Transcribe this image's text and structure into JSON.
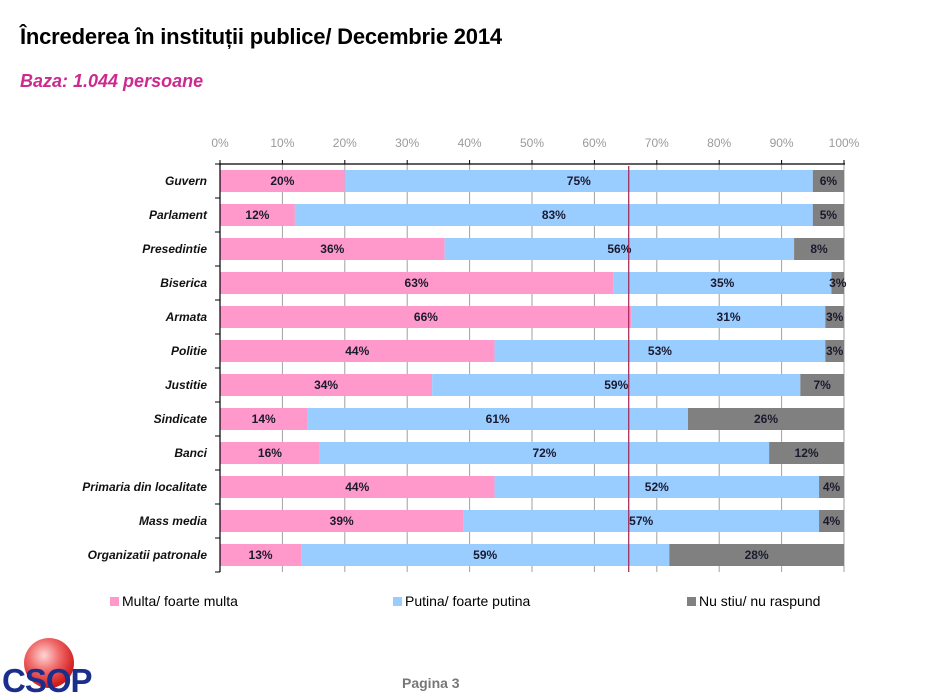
{
  "header": {
    "title": "Încrederea în instituții publice/ Decembrie 2014",
    "subtitle": "Baza: 1.044 persoane"
  },
  "colors": {
    "multa": "#ff99cc",
    "putina": "#99ccff",
    "nu_stiu": "#808080",
    "reference_line": "#a3224f",
    "subtitle": "#cc2a8e",
    "logo_text": "#1a2e8c"
  },
  "chart_data": {
    "type": "bar",
    "orientation": "horizontal",
    "stacked": "100%",
    "title": "Încrederea în instituții publice/ Decembrie 2014",
    "subtitle": "Baza: 1.044 persoane",
    "xlabel": "",
    "ylabel": "",
    "xlim": [
      0,
      100
    ],
    "x_tick_labels": [
      "0%",
      "10%",
      "20%",
      "30%",
      "40%",
      "50%",
      "60%",
      "70%",
      "80%",
      "90%",
      "100%"
    ],
    "x_axis_position": "top",
    "grid": true,
    "legend_position": "bottom",
    "reference_line_x": 65.5,
    "categories": [
      "Guvern",
      "Parlament",
      "Presedintie",
      "Biserica",
      "Armata",
      "Politie",
      "Justitie",
      "Sindicate",
      "Banci",
      "Primaria din localitate",
      "Mass media",
      "Organizatii patronale"
    ],
    "series": [
      {
        "name": "Multa/ foarte multa",
        "color": "#ff99cc",
        "values": [
          20,
          12,
          36,
          63,
          66,
          44,
          34,
          14,
          16,
          44,
          39,
          13
        ]
      },
      {
        "name": "Putina/ foarte putina",
        "color": "#99ccff",
        "values": [
          75,
          83,
          56,
          35,
          31,
          53,
          59,
          61,
          72,
          52,
          57,
          59
        ]
      },
      {
        "name": "Nu stiu/ nu raspund",
        "color": "#808080",
        "values": [
          6,
          5,
          8,
          3,
          3,
          3,
          7,
          26,
          12,
          4,
          4,
          28
        ]
      }
    ]
  },
  "legend": [
    {
      "label": "Multa/ foarte multa",
      "color": "#ff99cc"
    },
    {
      "label": "Putina/ foarte putina",
      "color": "#99ccff"
    },
    {
      "label": "Nu stiu/ nu raspund",
      "color": "#808080"
    }
  ],
  "footer": {
    "logo_text": "CSOP",
    "page_label": "Pagina  3"
  }
}
